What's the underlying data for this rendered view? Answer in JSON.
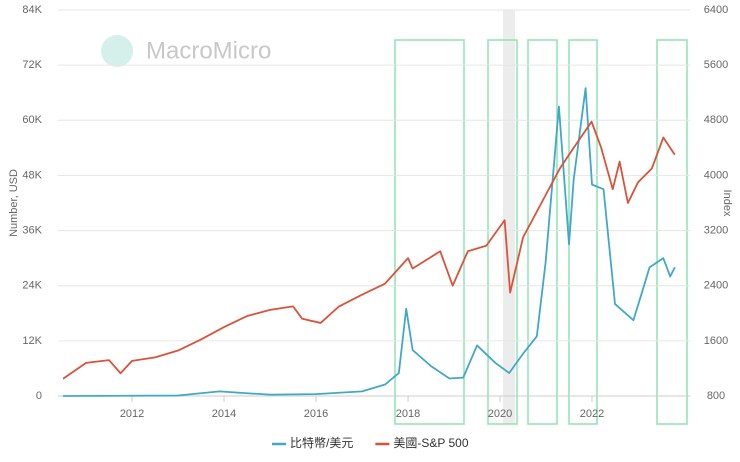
{
  "chart_data": {
    "type": "line",
    "watermark": "MacroMicro",
    "ylabel": "Number, USD",
    "y2label": "Index",
    "xlim": [
      2010.39,
      2024.13
    ],
    "xticks": [
      2012,
      2014,
      2016,
      2018,
      2020,
      2022
    ],
    "ylim": [
      0,
      84000
    ],
    "yticks": [
      {
        "value": 0,
        "label": "0"
      },
      {
        "value": 12000,
        "label": "12K"
      },
      {
        "value": 24000,
        "label": "24K"
      },
      {
        "value": 36000,
        "label": "36K"
      },
      {
        "value": 48000,
        "label": "48K"
      },
      {
        "value": 60000,
        "label": "60K"
      },
      {
        "value": 72000,
        "label": "72K"
      },
      {
        "value": 84000,
        "label": "84K"
      }
    ],
    "y2lim": [
      800,
      6400
    ],
    "y2ticks": [
      800,
      1600,
      2400,
      3200,
      4000,
      4800,
      5600,
      6400
    ],
    "grid": true,
    "legend": "bottom",
    "series": [
      {
        "name": "比特幣/美元",
        "color": "#42a8c8",
        "x": [
          2010.5,
          2013,
          2013.9,
          2014.5,
          2015,
          2016,
          2017,
          2017.5,
          2017.8,
          2017.96,
          2018.1,
          2018.5,
          2018.9,
          2019.2,
          2019.5,
          2019.9,
          2020.2,
          2020.5,
          2020.8,
          2020.99,
          2021.28,
          2021.5,
          2021.6,
          2021.86,
          2022.0,
          2022.25,
          2022.5,
          2022.9,
          2023.1,
          2023.25,
          2023.55,
          2023.7,
          2023.8
        ],
        "values": [
          0,
          100,
          1000,
          600,
          300,
          400,
          1000,
          2500,
          5000,
          19000,
          10000,
          6500,
          3800,
          4000,
          11000,
          7200,
          5000,
          9200,
          13000,
          29000,
          63000,
          33000,
          47000,
          67000,
          46000,
          45000,
          20000,
          16500,
          23000,
          28000,
          30000,
          26000,
          28000
        ]
      },
      {
        "name": "美國-S&P 500",
        "color": "#d9533a",
        "axis": "y2",
        "x": [
          2010.5,
          2011,
          2011.5,
          2011.75,
          2012,
          2012.5,
          2013,
          2013.5,
          2014,
          2014.5,
          2015,
          2015.5,
          2015.7,
          2016.1,
          2016.5,
          2017,
          2017.5,
          2018,
          2018.1,
          2018.7,
          2018.97,
          2019.3,
          2019.7,
          2020.1,
          2020.22,
          2020.5,
          2020.9,
          2021.3,
          2021.6,
          2021.99,
          2022.2,
          2022.45,
          2022.6,
          2022.78,
          2023.0,
          2023.3,
          2023.55,
          2023.7,
          2023.8
        ],
        "values": [
          1050,
          1280,
          1320,
          1130,
          1310,
          1360,
          1460,
          1620,
          1800,
          1960,
          2050,
          2100,
          1920,
          1860,
          2100,
          2270,
          2430,
          2800,
          2650,
          2900,
          2400,
          2900,
          2980,
          3350,
          2300,
          3100,
          3600,
          4100,
          4400,
          4780,
          4400,
          3800,
          4200,
          3600,
          3900,
          4100,
          4550,
          4400,
          4300
        ]
      }
    ]
  }
}
